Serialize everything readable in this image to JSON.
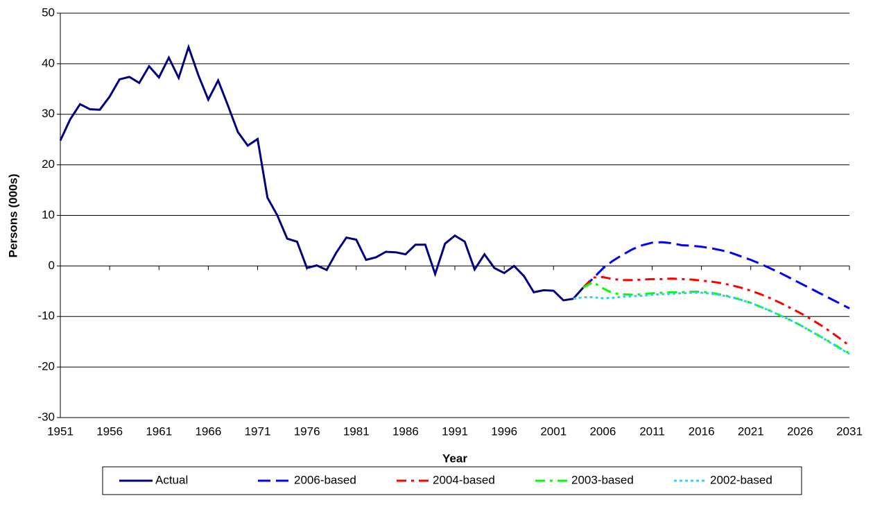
{
  "chart_data": {
    "type": "line",
    "x_label": "Year",
    "y_label": "Persons (000s)",
    "xlim": [
      1951,
      2031
    ],
    "xticks": [
      1951,
      1956,
      1961,
      1966,
      1971,
      1976,
      1981,
      1986,
      1991,
      1996,
      2001,
      2006,
      2011,
      2016,
      2021,
      2026,
      2031
    ],
    "ylim": [
      -30,
      50
    ],
    "yticks": [
      -30,
      -20,
      -10,
      0,
      10,
      20,
      30,
      40,
      50
    ],
    "grid": true,
    "legend": "bottom",
    "series": [
      {
        "name": "Actual",
        "color": "#000080",
        "dash": "solid",
        "x": [
          1951,
          1952,
          1953,
          1954,
          1955,
          1956,
          1957,
          1958,
          1959,
          1960,
          1961,
          1962,
          1963,
          1964,
          1965,
          1966,
          1967,
          1968,
          1969,
          1970,
          1971,
          1972,
          1973,
          1974,
          1975,
          1976,
          1977,
          1978,
          1979,
          1980,
          1981,
          1982,
          1983,
          1984,
          1985,
          1986,
          1987,
          1988,
          1989,
          1990,
          1991,
          1992,
          1993,
          1994,
          1995,
          1996,
          1997,
          1998,
          1999,
          2000,
          2001,
          2002,
          2003,
          2004
        ],
        "values": [
          24.8,
          29,
          32,
          31,
          30.9,
          33.5,
          36.9,
          37.4,
          36.2,
          39.5,
          37.3,
          41.2,
          37.2,
          43.3,
          37.7,
          32.9,
          36.7,
          31.7,
          26.5,
          23.8,
          25.1,
          13.5,
          10,
          5.4,
          4.8,
          -0.4,
          0.1,
          -0.8,
          2.7,
          5.6,
          5.2,
          1.2,
          1.7,
          2.8,
          2.7,
          2.3,
          4.2,
          4.2,
          -1.6,
          4.4,
          6,
          4.8,
          -0.7,
          2.3,
          -0.4,
          -1.4,
          0,
          -2,
          -5.2,
          -4.8,
          -4.9,
          -6.8,
          -6.5,
          -4.3
        ]
      },
      {
        "name": "2006-based",
        "color": "#0000ff",
        "dash": "long",
        "x": [
          2004,
          2005,
          2006,
          2007,
          2008,
          2009,
          2010,
          2011,
          2012,
          2013,
          2014,
          2015,
          2016,
          2017,
          2018,
          2019,
          2020,
          2021,
          2022,
          2023,
          2024,
          2025,
          2026,
          2027,
          2028,
          2029,
          2030,
          2031
        ],
        "values": [
          -4.3,
          -2.5,
          -0.5,
          1,
          2.2,
          3.3,
          4.1,
          4.6,
          4.7,
          4.5,
          4.1,
          4,
          3.8,
          3.5,
          3.1,
          2.6,
          1.9,
          1.2,
          0.4,
          -0.5,
          -1.4,
          -2.4,
          -3.4,
          -4.4,
          -5.4,
          -6.4,
          -7.4,
          -8.4
        ]
      },
      {
        "name": "2004-based",
        "color": "#ff0000",
        "dash": "dashdot",
        "x": [
          2004,
          2005,
          2006,
          2007,
          2008,
          2009,
          2010,
          2011,
          2012,
          2013,
          2014,
          2015,
          2016,
          2017,
          2018,
          2019,
          2020,
          2021,
          2022,
          2023,
          2024,
          2025,
          2026,
          2027,
          2028,
          2029,
          2030,
          2031
        ],
        "values": [
          -4.3,
          -2.3,
          -2.2,
          -2.6,
          -2.8,
          -2.8,
          -2.7,
          -2.6,
          -2.6,
          -2.5,
          -2.6,
          -2.7,
          -2.9,
          -3.1,
          -3.4,
          -3.8,
          -4.3,
          -4.9,
          -5.6,
          -6.4,
          -7.3,
          -8.3,
          -9.3,
          -10.4,
          -11.6,
          -12.9,
          -14.3,
          -15.8
        ]
      },
      {
        "name": "2003-based",
        "color": "#00ff00",
        "dash": "dashdot",
        "x": [
          2004,
          2005,
          2006,
          2007,
          2008,
          2009,
          2010,
          2011,
          2012,
          2013,
          2014,
          2015,
          2016,
          2017,
          2018,
          2019,
          2020,
          2021,
          2022,
          2023,
          2024,
          2025,
          2026,
          2027,
          2028,
          2029,
          2030,
          2031
        ],
        "values": [
          -4.3,
          -3.2,
          -4.4,
          -5.4,
          -5.6,
          -5.7,
          -5.6,
          -5.4,
          -5.3,
          -5.2,
          -5.2,
          -5.1,
          -5.1,
          -5.3,
          -5.7,
          -6.1,
          -6.7,
          -7.3,
          -8.1,
          -8.9,
          -9.8,
          -10.7,
          -11.7,
          -12.8,
          -13.9,
          -15,
          -16.2,
          -17.3
        ]
      },
      {
        "name": "2002-based",
        "color": "#33ccff",
        "dash": "dot",
        "x": [
          2003,
          2004,
          2005,
          2006,
          2007,
          2008,
          2009,
          2010,
          2011,
          2012,
          2013,
          2014,
          2015,
          2016,
          2017,
          2018,
          2019,
          2020,
          2021,
          2022,
          2023,
          2024,
          2025,
          2026,
          2027,
          2028,
          2029,
          2030,
          2031
        ],
        "values": [
          -6.5,
          -6.2,
          -6.2,
          -6.4,
          -6.3,
          -6.1,
          -6,
          -5.9,
          -5.7,
          -5.6,
          -5.5,
          -5.4,
          -5.3,
          -5.3,
          -5.5,
          -5.8,
          -6.2,
          -6.7,
          -7.3,
          -8.1,
          -8.9,
          -9.8,
          -10.7,
          -11.7,
          -12.8,
          -13.9,
          -15.1,
          -16.3,
          -17.4
        ]
      }
    ]
  }
}
